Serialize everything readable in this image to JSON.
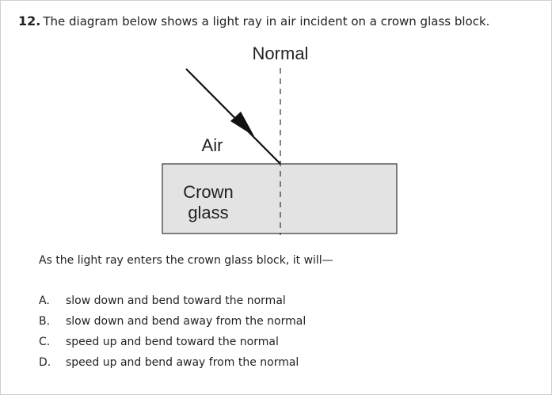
{
  "question": {
    "number": "12.",
    "stem": "The diagram below shows a light ray in air incident on a crown glass block.",
    "prompt": "As the light ray enters the crown glass block, it will—"
  },
  "diagram": {
    "normal_label": "Normal",
    "air_label": "Air",
    "glass_label_line1": "Crown",
    "glass_label_line2": "glass",
    "colors": {
      "glass_fill": "#e3e3e3",
      "line": "#222222"
    }
  },
  "choices": [
    {
      "letter": "A.",
      "text": "slow down and bend toward the normal"
    },
    {
      "letter": "B.",
      "text": "slow down and bend away from the normal"
    },
    {
      "letter": "C.",
      "text": "speed up and bend toward the normal"
    },
    {
      "letter": "D.",
      "text": "speed up and bend away from the normal"
    }
  ]
}
